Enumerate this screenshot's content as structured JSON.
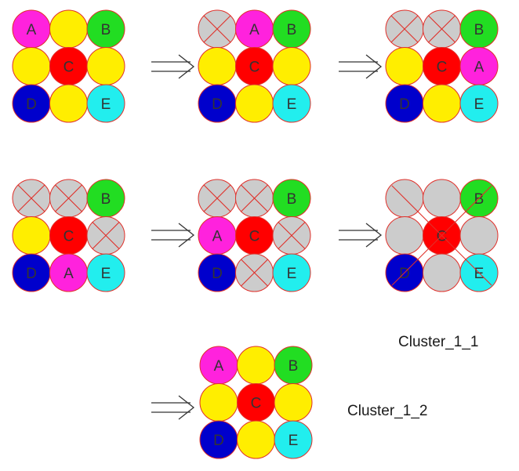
{
  "colors": {
    "A": "#ff22dd",
    "B": "#22dd22",
    "C": "#ff0000",
    "D": "#0000cc",
    "E": "#22eeee",
    "yellow": "#ffee00",
    "gray": "#cccccc",
    "stroke": "#e0302a",
    "text": "#333333"
  },
  "grids": [
    {
      "cells": [
        [
          "A",
          "Y",
          "B"
        ],
        [
          "Y",
          "C",
          "Y"
        ],
        [
          "D",
          "Y",
          "E"
        ]
      ],
      "lines": []
    },
    {
      "cells": [
        [
          "X",
          "A",
          "B"
        ],
        [
          "Y",
          "C",
          "Y"
        ],
        [
          "D",
          "Y",
          "E"
        ]
      ],
      "lines": []
    },
    {
      "cells": [
        [
          "X",
          "X",
          "B"
        ],
        [
          "Y",
          "C",
          "A"
        ],
        [
          "D",
          "Y",
          "E"
        ]
      ],
      "lines": []
    },
    {
      "cells": [
        [
          "X",
          "X",
          "B"
        ],
        [
          "Y",
          "C",
          "X"
        ],
        [
          "D",
          "A",
          "E"
        ]
      ],
      "lines": []
    },
    {
      "cells": [
        [
          "X",
          "X",
          "B"
        ],
        [
          "A",
          "C",
          "X"
        ],
        [
          "D",
          "X",
          "E"
        ]
      ],
      "lines": []
    },
    {
      "cells": [
        [
          "G",
          "G",
          "B"
        ],
        [
          "G",
          "C",
          "G"
        ],
        [
          "D",
          "G",
          "E"
        ]
      ],
      "lines": [
        [
          0,
          0,
          2,
          2
        ],
        [
          0,
          2,
          2,
          0
        ]
      ]
    },
    {
      "cells": [
        [
          "A",
          "Y",
          "B"
        ],
        [
          "Y",
          "C",
          "Y"
        ],
        [
          "D",
          "Y",
          "E"
        ]
      ],
      "lines": []
    }
  ],
  "captions": {
    "first": "Cluster_1_1",
    "second": "Cluster_1_2"
  }
}
